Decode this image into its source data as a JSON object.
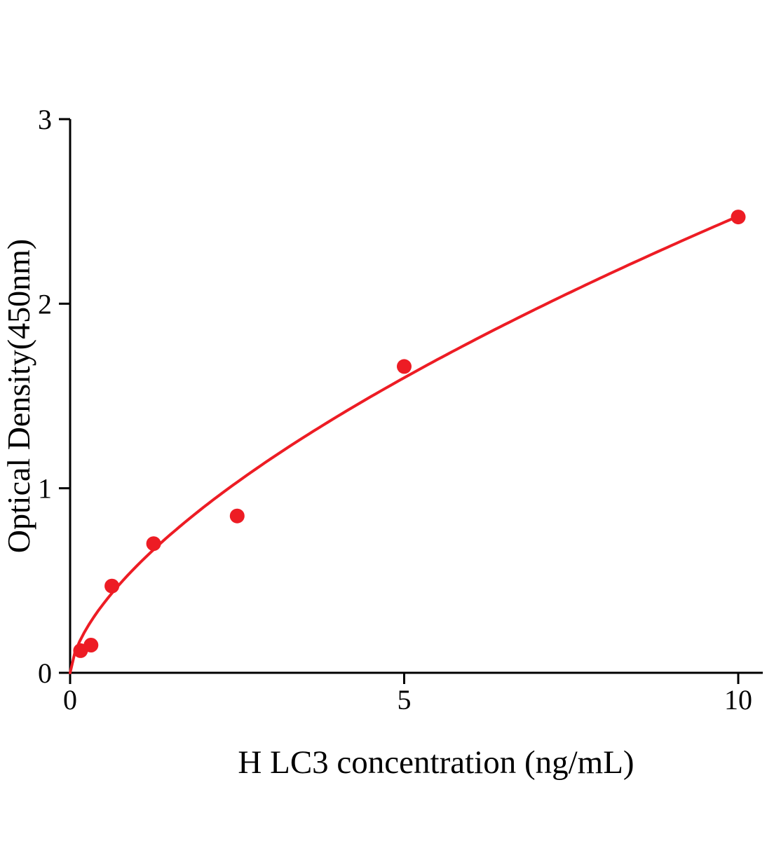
{
  "chart_data": {
    "type": "scatter",
    "title": "",
    "xlabel": "H LC3 concentration (ng/mL)",
    "ylabel": "Optical Density(450nm)",
    "x_ticks": [
      0,
      5,
      10
    ],
    "y_ticks": [
      0,
      1,
      2,
      3
    ],
    "xlim": [
      0,
      10.4
    ],
    "ylim": [
      0,
      3
    ],
    "grid": false,
    "legend": false,
    "points": [
      {
        "x": 0.156,
        "y": 0.12
      },
      {
        "x": 0.3125,
        "y": 0.15
      },
      {
        "x": 0.625,
        "y": 0.47
      },
      {
        "x": 1.25,
        "y": 0.7
      },
      {
        "x": 2.5,
        "y": 0.85
      },
      {
        "x": 5,
        "y": 1.66
      },
      {
        "x": 10,
        "y": 2.47
      }
    ],
    "fit_curve": {
      "type": "power",
      "a": 0.58,
      "b": 0.63,
      "x_start": 0,
      "x_end": 10
    },
    "colors": {
      "series": "#ed1c24",
      "axis": "#000000"
    }
  }
}
